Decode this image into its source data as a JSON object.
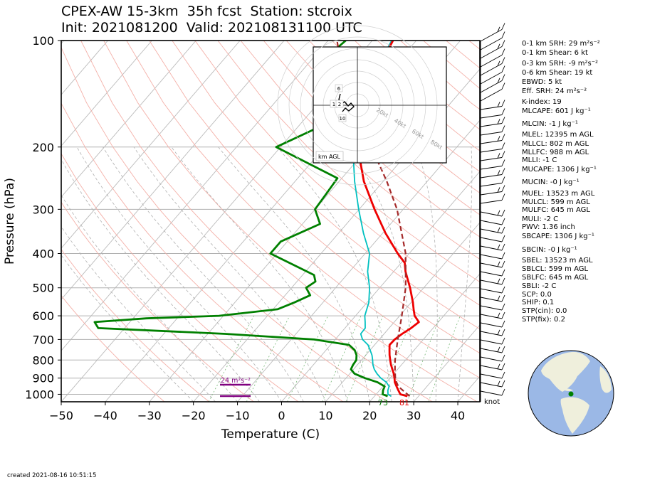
{
  "title_line1": "CPEX-AW 15-3km  35h fcst  Station: stcroix",
  "title_line2": "Init: 2021081200  Valid: 202108131100 UTC",
  "created": "created 2021-08-16 10:51:15",
  "knot_label": "knot",
  "colors": {
    "temperature": "#ee0000",
    "dewpoint": "#008000",
    "wetbulb": "#00c0c0",
    "parcel": "#a52a2a",
    "srh_bar": "#800080"
  },
  "indices": [
    {
      "name": "0-1 km SRH",
      "value": "29 m²s⁻²"
    },
    {
      "name": "0-1 km Shear",
      "value": "6 kt"
    },
    {
      "name": "0-3 km SRH",
      "value": "-9 m²s⁻²"
    },
    {
      "name": "0-6 km Shear",
      "value": "19 kt"
    },
    {
      "name": "EBWD",
      "value": "5 kt"
    },
    {
      "name": "Eff. SRH",
      "value": "24 m²s⁻²"
    },
    {
      "name": "K-index",
      "value": "19"
    },
    {
      "name": "MLCAPE",
      "value": "601 J kg⁻¹"
    },
    {
      "name": "MLCIN",
      "value": "-1 J kg⁻¹"
    },
    {
      "name": "MLEL",
      "value": "12395 m AGL"
    },
    {
      "name": "MLLCL",
      "value": "802 m AGL"
    },
    {
      "name": "MLLFC",
      "value": "988 m AGL"
    },
    {
      "name": "MLLI",
      "value": "-1 C"
    },
    {
      "name": "MUCAPE",
      "value": "1306 J kg⁻¹"
    },
    {
      "name": "MUCIN",
      "value": "-0 J kg⁻¹"
    },
    {
      "name": "MUEL",
      "value": "13523 m AGL"
    },
    {
      "name": "MULCL",
      "value": "599 m AGL"
    },
    {
      "name": "MULFC",
      "value": "645 m AGL"
    },
    {
      "name": "MULI",
      "value": "-2 C"
    },
    {
      "name": "PWV",
      "value": "1.36 inch"
    },
    {
      "name": "SBCAPE",
      "value": "1306 J kg⁻¹"
    },
    {
      "name": "SBCIN",
      "value": "-0 J kg⁻¹"
    },
    {
      "name": "SBEL",
      "value": "13523 m AGL"
    },
    {
      "name": "SBLCL",
      "value": "599 m AGL"
    },
    {
      "name": "SBLFC",
      "value": "645 m AGL"
    },
    {
      "name": "SBLI",
      "value": "-2 C"
    },
    {
      "name": "SCP",
      "value": "0.0"
    },
    {
      "name": "SHIP",
      "value": "0.1"
    },
    {
      "name": "STP(cin)",
      "value": "0.0"
    },
    {
      "name": "STP(fix)",
      "value": "0.2"
    }
  ],
  "hodograph": {
    "ring_labels": [
      "20kt",
      "40kt",
      "60kt",
      "80kt"
    ],
    "height_labels": [
      "6",
      "1",
      "2",
      "10"
    ],
    "legend": "km AGL"
  },
  "chart_data": {
    "type": "skew-T",
    "xlabel": "Temperature (C)",
    "ylabel": "Pressure (hPa)",
    "xlim": [
      -50,
      45
    ],
    "ylim": [
      1050,
      100
    ],
    "y_log": true,
    "x_ticks": [
      "−50",
      "−40",
      "−30",
      "−20",
      "−10",
      "0",
      "10",
      "20",
      "30",
      "40"
    ],
    "y_ticks": [
      "100",
      "200",
      "300",
      "400",
      "500",
      "600",
      "700",
      "800",
      "900",
      "1000"
    ],
    "surface_temperature_label": "81",
    "surface_dewpoint_label": "73",
    "srh_label": "24 m²s⁻²",
    "series": [
      {
        "key": "temperature",
        "points": [
          [
            1013,
            27.5
          ],
          [
            1000,
            25.5
          ],
          [
            975,
            24.3
          ],
          [
            950,
            23.1
          ],
          [
            925,
            21.9
          ],
          [
            900,
            21.0
          ],
          [
            875,
            20.0
          ],
          [
            850,
            18.8
          ],
          [
            825,
            17.6
          ],
          [
            800,
            16.5
          ],
          [
            775,
            15.4
          ],
          [
            750,
            14.4
          ],
          [
            725,
            13.4
          ],
          [
            700,
            13.5
          ],
          [
            675,
            14.1
          ],
          [
            650,
            15.0
          ],
          [
            625,
            15.6
          ],
          [
            600,
            13.4
          ],
          [
            575,
            11.9
          ],
          [
            550,
            10.4
          ],
          [
            500,
            6.9
          ],
          [
            450,
            2.7
          ],
          [
            425,
            0.8
          ],
          [
            400,
            -2.6
          ],
          [
            350,
            -9.4
          ],
          [
            300,
            -16.5
          ],
          [
            250,
            -24.4
          ],
          [
            200,
            -32.5
          ],
          [
            175,
            -36.2
          ],
          [
            150,
            -39.4
          ],
          [
            125,
            -42.6
          ],
          [
            100,
            -45.3
          ]
        ]
      },
      {
        "key": "dewpoint",
        "points": [
          [
            1013,
            23.0
          ],
          [
            1000,
            21.5
          ],
          [
            975,
            20.8
          ],
          [
            950,
            20.4
          ],
          [
            925,
            18.0
          ],
          [
            900,
            14.3
          ],
          [
            875,
            11.1
          ],
          [
            850,
            9.4
          ],
          [
            825,
            9.0
          ],
          [
            800,
            8.8
          ],
          [
            775,
            7.9
          ],
          [
            750,
            6.5
          ],
          [
            725,
            4.2
          ],
          [
            700,
            -4.8
          ],
          [
            675,
            -26.0
          ],
          [
            650,
            -56.0
          ],
          [
            625,
            -58.0
          ],
          [
            610,
            -47.0
          ],
          [
            600,
            -31.0
          ],
          [
            575,
            -19.0
          ],
          [
            550,
            -16.5
          ],
          [
            525,
            -14.3
          ],
          [
            500,
            -16.7
          ],
          [
            480,
            -15.8
          ],
          [
            460,
            -17.4
          ],
          [
            400,
            -31.5
          ],
          [
            370,
            -31.5
          ],
          [
            330,
            -26.0
          ],
          [
            300,
            -30.0
          ],
          [
            270,
            -30.5
          ],
          [
            245,
            -31.0
          ],
          [
            200,
            -51.0
          ],
          [
            175,
            -45.0
          ],
          [
            150,
            -48.0
          ],
          [
            125,
            -55.0
          ],
          [
            110,
            -57.0
          ],
          [
            100,
            -56.0
          ]
        ]
      },
      {
        "key": "wetbulb",
        "points": [
          [
            1013,
            23.8
          ],
          [
            1000,
            22.7
          ],
          [
            975,
            21.9
          ],
          [
            950,
            21.4
          ],
          [
            925,
            20.0
          ],
          [
            900,
            17.9
          ],
          [
            875,
            16.2
          ],
          [
            850,
            14.7
          ],
          [
            825,
            13.5
          ],
          [
            800,
            12.5
          ],
          [
            775,
            11.4
          ],
          [
            750,
            10.0
          ],
          [
            725,
            8.5
          ],
          [
            700,
            6.2
          ],
          [
            675,
            4.7
          ],
          [
            650,
            4.6
          ],
          [
            625,
            3.4
          ],
          [
            600,
            2.1
          ],
          [
            550,
            0.4
          ],
          [
            500,
            -2.3
          ],
          [
            450,
            -5.9
          ],
          [
            400,
            -9.0
          ],
          [
            350,
            -14.4
          ],
          [
            300,
            -20.1
          ],
          [
            250,
            -26.5
          ],
          [
            200,
            -33.6
          ],
          [
            150,
            -40.2
          ],
          [
            125,
            -43.0
          ],
          [
            100,
            -45.6
          ]
        ]
      },
      {
        "key": "parcel",
        "points": [
          [
            1013,
            28.0
          ],
          [
            950,
            23.5
          ],
          [
            925,
            22.3
          ],
          [
            900,
            21.2
          ],
          [
            850,
            19.4
          ],
          [
            800,
            17.6
          ],
          [
            700,
            14.2
          ],
          [
            600,
            10.5
          ],
          [
            500,
            5.9
          ],
          [
            400,
            -0.8
          ],
          [
            300,
            -11.4
          ],
          [
            250,
            -19.2
          ],
          [
            200,
            -29.4
          ],
          [
            150,
            -42.0
          ],
          [
            125,
            -50.0
          ],
          [
            100,
            -58.0
          ]
        ]
      }
    ]
  }
}
